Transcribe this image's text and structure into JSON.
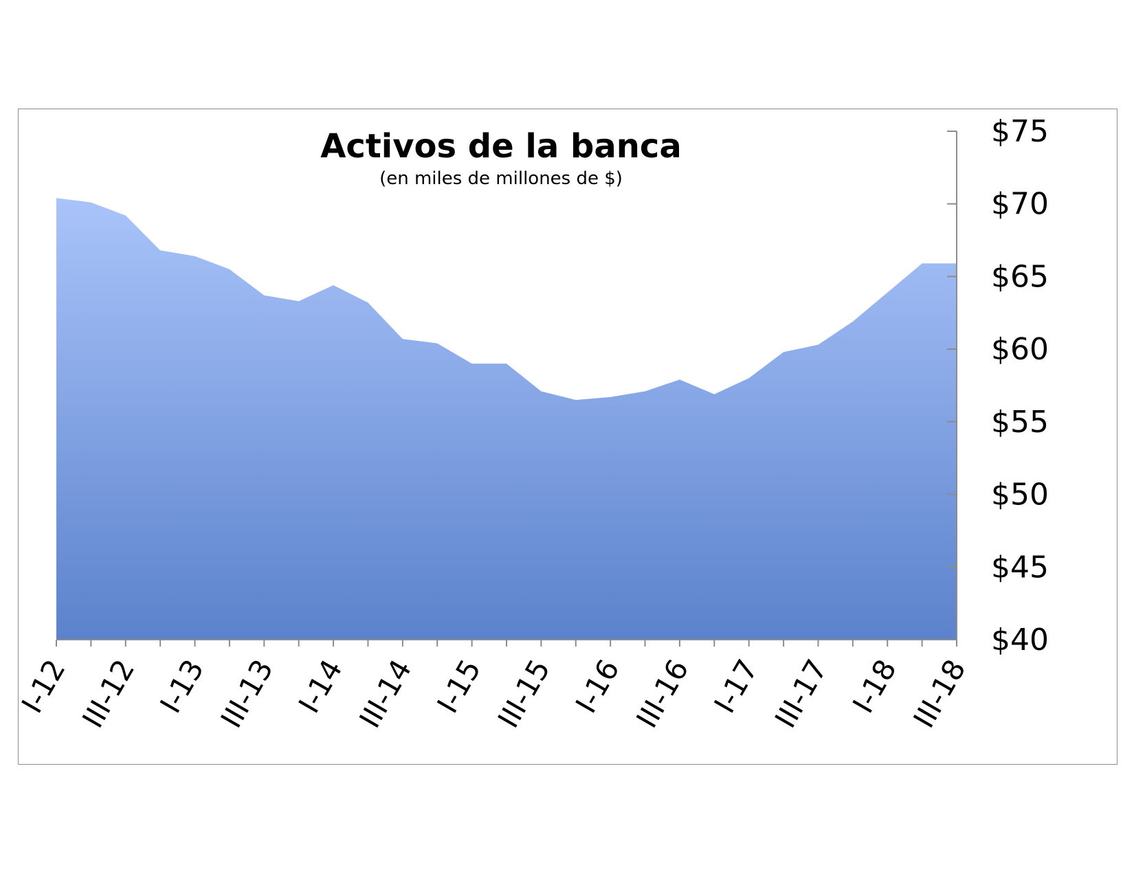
{
  "chart_data": {
    "type": "area",
    "title": "Activos de la banca",
    "subtitle": "(en miles de millones de $)",
    "xlabel": "",
    "ylabel": "",
    "x": [
      "I-12",
      "II-12",
      "III-12",
      "IV-12",
      "I-13",
      "II-13",
      "III-13",
      "IV-13",
      "I-14",
      "II-14",
      "III-14",
      "IV-14",
      "I-15",
      "II-15",
      "III-15",
      "IV-15",
      "I-16",
      "II-16",
      "III-16",
      "IV-16",
      "I-17",
      "II-17",
      "III-17",
      "IV-17",
      "I-18",
      "II-18",
      "III-18"
    ],
    "x_tick_labels": [
      "I-12",
      "III-12",
      "I-13",
      "III-13",
      "I-14",
      "III-14",
      "I-15",
      "III-15",
      "I-16",
      "III-16",
      "I-17",
      "III-17",
      "I-18",
      "III-18"
    ],
    "series": [
      {
        "values": [
          70.4,
          70.1,
          69.2,
          66.8,
          66.4,
          65.5,
          63.7,
          63.3,
          64.4,
          63.2,
          60.7,
          60.4,
          59.0,
          59.0,
          57.1,
          56.5,
          56.7,
          57.1,
          57.9,
          56.9,
          58.0,
          59.8,
          60.3,
          61.9,
          63.9,
          65.9,
          65.9
        ]
      }
    ],
    "ylim": [
      40,
      75
    ],
    "y_ticks": [
      40,
      45,
      50,
      55,
      60,
      65,
      70,
      75
    ],
    "y_tick_prefix": "$",
    "y_axis_side": "right",
    "grid": false,
    "legend": "none",
    "colors": {
      "area_top": "#aac4fa",
      "area_bottom": "#5b82cc",
      "axis": "#8c8c8c",
      "frame": "#8c8c8c"
    }
  }
}
